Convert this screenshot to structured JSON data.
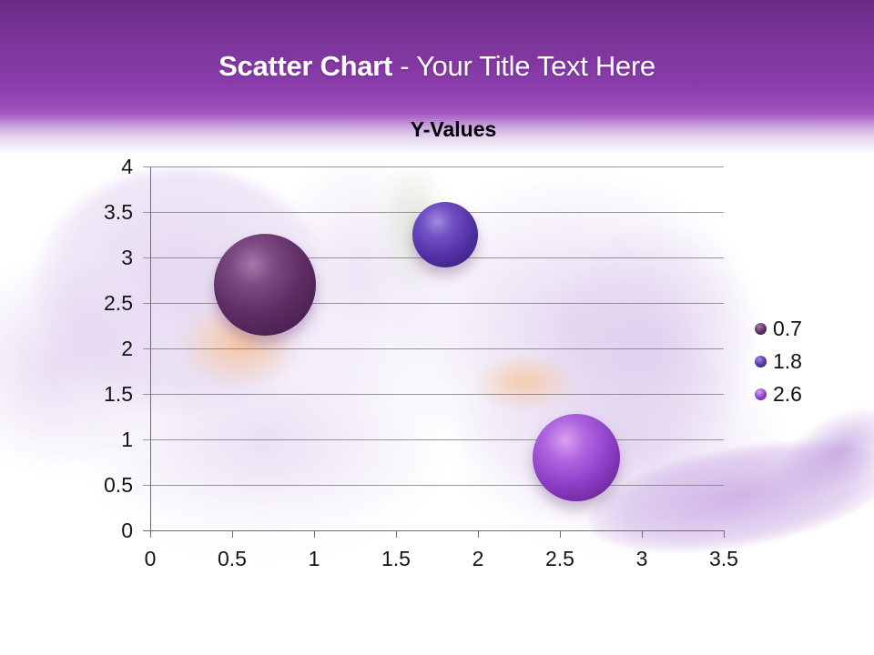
{
  "slide": {
    "header": {
      "title_bold": "Scatter Chart",
      "title_rest": " - Your Title Text Here",
      "background_top_color": "#682b82",
      "background_mid_color": "#9c4cba",
      "text_color": "#ffffff"
    }
  },
  "chart_data": {
    "type": "scatter",
    "title": "Y-Values",
    "xlabel": "",
    "ylabel": "",
    "x_range": [
      0,
      3.5
    ],
    "y_range": [
      0,
      4
    ],
    "x_tick_step": 0.5,
    "y_tick_step": 0.5,
    "grid": true,
    "legend_position": "right",
    "x_ticks": [
      "0",
      "0.5",
      "1",
      "1.5",
      "2",
      "2.5",
      "3",
      "3.5"
    ],
    "y_ticks_top_to_bottom": [
      "4",
      "3.5",
      "3",
      "2.5",
      "2",
      "1.5",
      "1",
      "0.5",
      "0"
    ],
    "series": [
      {
        "name": "0.7",
        "x": 0.7,
        "y": 2.7,
        "bubble_radius_px": 56,
        "color": "#5e2d63"
      },
      {
        "name": "1.8",
        "x": 1.8,
        "y": 3.25,
        "bubble_radius_px": 36,
        "color": "#5433a8"
      },
      {
        "name": "2.6",
        "x": 2.6,
        "y": 0.8,
        "bubble_radius_px": 48,
        "color": "#8d3fc8"
      }
    ]
  }
}
